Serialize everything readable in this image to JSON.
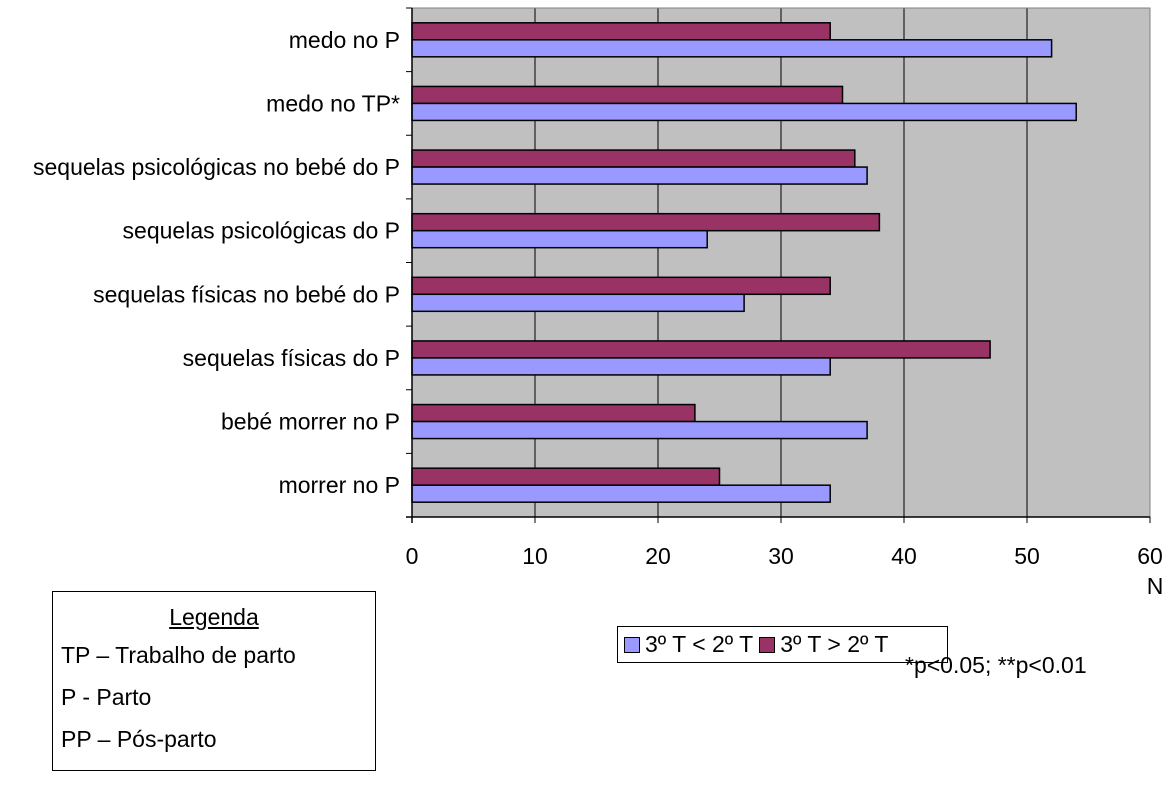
{
  "chart_data": {
    "type": "bar",
    "orientation": "horizontal",
    "categories": [
      "medo no P",
      "medo no TP*",
      "sequelas psicológicas no bebé do P",
      "sequelas psicológicas do P",
      "sequelas físicas no bebé do P",
      "sequelas físicas do P",
      "bebé morrer no P",
      "morrer no P"
    ],
    "series": [
      {
        "name": "3º T > 2º T",
        "color": "#993366",
        "values": [
          34,
          35,
          36,
          38,
          34,
          47,
          23,
          25
        ]
      },
      {
        "name": "3º T < 2º T",
        "color": "#9999ff",
        "values": [
          52,
          54,
          37,
          24,
          27,
          34,
          37,
          34
        ]
      }
    ],
    "xlabel": "N",
    "xlim": [
      0,
      60
    ],
    "xticks": [
      "0",
      "10",
      "20",
      "30",
      "40",
      "50",
      "60"
    ],
    "grid": true,
    "plot_background": "#c0c0c0",
    "legend_position": "bottom"
  },
  "legend_items": [
    {
      "label": "3º T < 2º T",
      "color": "#9999ff"
    },
    {
      "label": "3º T > 2º T",
      "color": "#993366"
    }
  ],
  "note": "*p<0.05; **p<0.01",
  "key": {
    "title": "Legenda",
    "lines": [
      "TP – Trabalho de parto",
      "P  -  Parto",
      "PP – Pós-parto"
    ]
  }
}
